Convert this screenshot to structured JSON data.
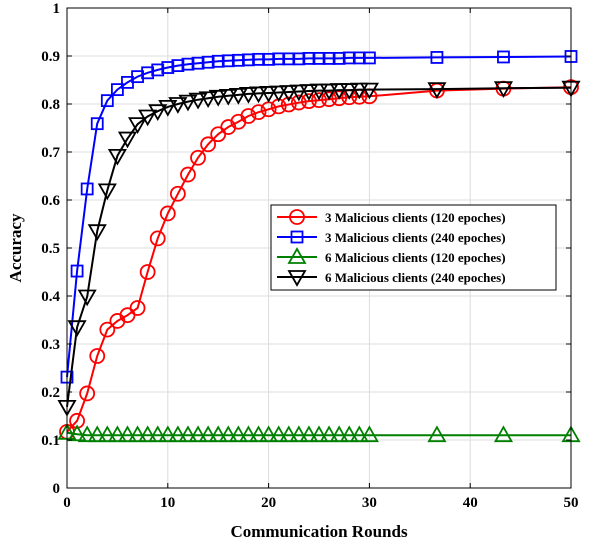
{
  "chart_data": {
    "type": "line",
    "title": "",
    "xlabel": "Communication Rounds",
    "ylabel": "Accuracy",
    "xlim": [
      0,
      50
    ],
    "ylim": [
      0,
      1
    ],
    "x_ticks": [
      0,
      10,
      20,
      30,
      40,
      50
    ],
    "y_ticks": [
      0,
      0.1,
      0.2,
      0.3,
      0.4,
      0.5,
      0.6,
      0.7,
      0.8,
      0.9,
      1
    ],
    "grid": true,
    "legend_position": "center-right",
    "series": [
      {
        "name": "3 Malicious clients (120 epoches)",
        "color": "#ff0000",
        "marker": "circle",
        "x": [
          0,
          1,
          2,
          3,
          4,
          5,
          6,
          7,
          8,
          9,
          10,
          11,
          12,
          13,
          14,
          15,
          16,
          17,
          18,
          19,
          20,
          21,
          22,
          23,
          24,
          25,
          26,
          27,
          28,
          29,
          30,
          36.7,
          43.3,
          50
        ],
        "y": [
          0.117,
          0.14,
          0.197,
          0.275,
          0.33,
          0.348,
          0.36,
          0.375,
          0.45,
          0.52,
          0.572,
          0.613,
          0.653,
          0.688,
          0.716,
          0.737,
          0.752,
          0.763,
          0.775,
          0.783,
          0.789,
          0.795,
          0.799,
          0.803,
          0.806,
          0.808,
          0.81,
          0.812,
          0.814,
          0.815,
          0.816,
          0.828,
          0.832,
          0.835
        ]
      },
      {
        "name": "3 Malicious clients (240 epoches)",
        "color": "#0000ff",
        "marker": "square",
        "x": [
          0,
          1,
          2,
          3,
          4,
          5,
          6,
          7,
          8,
          9,
          10,
          11,
          12,
          13,
          14,
          15,
          16,
          17,
          18,
          19,
          20,
          21,
          22,
          23,
          24,
          25,
          26,
          27,
          28,
          29,
          30,
          36.7,
          43.3,
          50
        ],
        "y": [
          0.231,
          0.452,
          0.623,
          0.759,
          0.807,
          0.83,
          0.845,
          0.857,
          0.865,
          0.871,
          0.876,
          0.88,
          0.883,
          0.885,
          0.887,
          0.889,
          0.89,
          0.891,
          0.892,
          0.893,
          0.893,
          0.894,
          0.894,
          0.894,
          0.895,
          0.895,
          0.895,
          0.895,
          0.896,
          0.896,
          0.896,
          0.897,
          0.898,
          0.899
        ]
      },
      {
        "name": "6 Malicious clients (120 epoches)",
        "color": "#008000",
        "marker": "triangle-up",
        "x": [
          0,
          1,
          2,
          3,
          4,
          5,
          6,
          7,
          8,
          9,
          10,
          11,
          12,
          13,
          14,
          15,
          16,
          17,
          18,
          19,
          20,
          21,
          22,
          23,
          24,
          25,
          26,
          27,
          28,
          29,
          30,
          36.7,
          43.3,
          50
        ],
        "y": [
          0.115,
          0.112,
          0.11,
          0.11,
          0.11,
          0.11,
          0.11,
          0.11,
          0.11,
          0.11,
          0.11,
          0.11,
          0.11,
          0.11,
          0.11,
          0.11,
          0.11,
          0.11,
          0.11,
          0.11,
          0.11,
          0.11,
          0.11,
          0.11,
          0.11,
          0.11,
          0.11,
          0.11,
          0.11,
          0.11,
          0.11,
          0.11,
          0.11,
          0.11
        ]
      },
      {
        "name": "6 Malicious clients (240 epoches)",
        "color": "#000000",
        "marker": "triangle-down",
        "x": [
          0,
          1,
          2,
          3,
          4,
          5,
          6,
          7,
          8,
          9,
          10,
          11,
          12,
          13,
          14,
          15,
          16,
          17,
          18,
          19,
          20,
          21,
          22,
          23,
          24,
          25,
          26,
          27,
          28,
          29,
          30,
          36.7,
          43.3,
          50
        ],
        "y": [
          0.169,
          0.335,
          0.399,
          0.535,
          0.62,
          0.692,
          0.728,
          0.758,
          0.774,
          0.785,
          0.794,
          0.8,
          0.805,
          0.809,
          0.812,
          0.815,
          0.817,
          0.819,
          0.821,
          0.822,
          0.823,
          0.824,
          0.825,
          0.826,
          0.827,
          0.828,
          0.828,
          0.829,
          0.829,
          0.83,
          0.83,
          0.831,
          0.833,
          0.834
        ]
      }
    ]
  }
}
